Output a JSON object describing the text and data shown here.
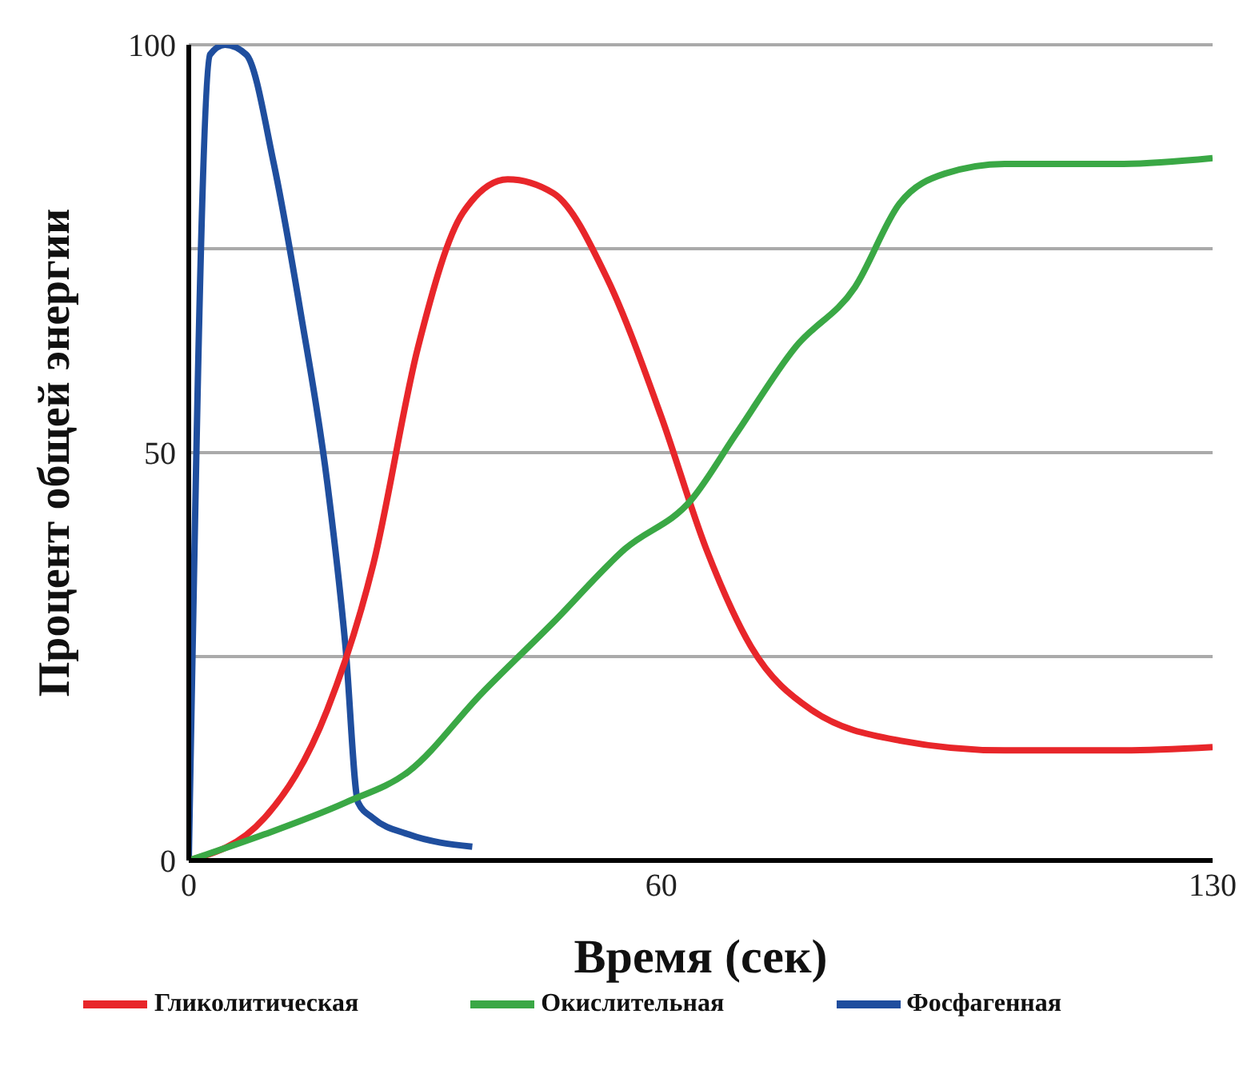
{
  "chart_data": {
    "type": "line",
    "xlabel": "Время (сек)",
    "ylabel": "Процент общей энергии",
    "xlim": [
      0,
      130
    ],
    "xticks": [
      0,
      60,
      130
    ],
    "ylim": [
      0,
      100
    ],
    "yticks": [
      0,
      {
        "value": 25,
        "label": null
      },
      50,
      {
        "value": 75,
        "label": null
      },
      100
    ],
    "grid": "y",
    "legend": "bottom",
    "marker": "none",
    "line_style": "solid",
    "series": [
      {
        "name": "Фосфагенная",
        "color": "#1f4e9e",
        "x": [
          0,
          2.7,
          4.6,
          7.3,
          10.8,
          14.2,
          17.6,
          19.9,
          21.5,
          23.4,
          27.9,
          36
        ],
        "values": [
          0,
          98.8,
          100,
          98.8,
          85.4,
          67.2,
          46.2,
          26.2,
          7.1,
          5.2,
          3.2,
          1.7
        ]
      },
      {
        "name": "Гликолитическая",
        "color": "#e8262a",
        "x": [
          0,
          9.6,
          17.6,
          23.4,
          29.1,
          34.8,
          40.5,
          46.3,
          53.1,
          60,
          65.7,
          71.4,
          79,
          90.3,
          103.6,
          118.7,
          130
        ],
        "values": [
          0,
          5.2,
          18.5,
          36.2,
          62.9,
          79.4,
          83.5,
          81.8,
          71.4,
          54.4,
          38.2,
          26.2,
          18.5,
          14.7,
          13.5,
          13.5,
          13.9
        ]
      },
      {
        "name": "Окислительная",
        "color": "#3aa845",
        "x": [
          0,
          9.6,
          19.9,
          27.9,
          37.1,
          46.3,
          55.4,
          63.8,
          69.5,
          77,
          84.6,
          90.3,
          96,
          103.6,
          118.7,
          130
        ],
        "values": [
          0,
          3.2,
          7.1,
          10.9,
          20.4,
          29.2,
          38.2,
          44.2,
          52.3,
          62.9,
          70.3,
          80.6,
          84.2,
          85.4,
          85.4,
          86.1
        ]
      }
    ]
  }
}
